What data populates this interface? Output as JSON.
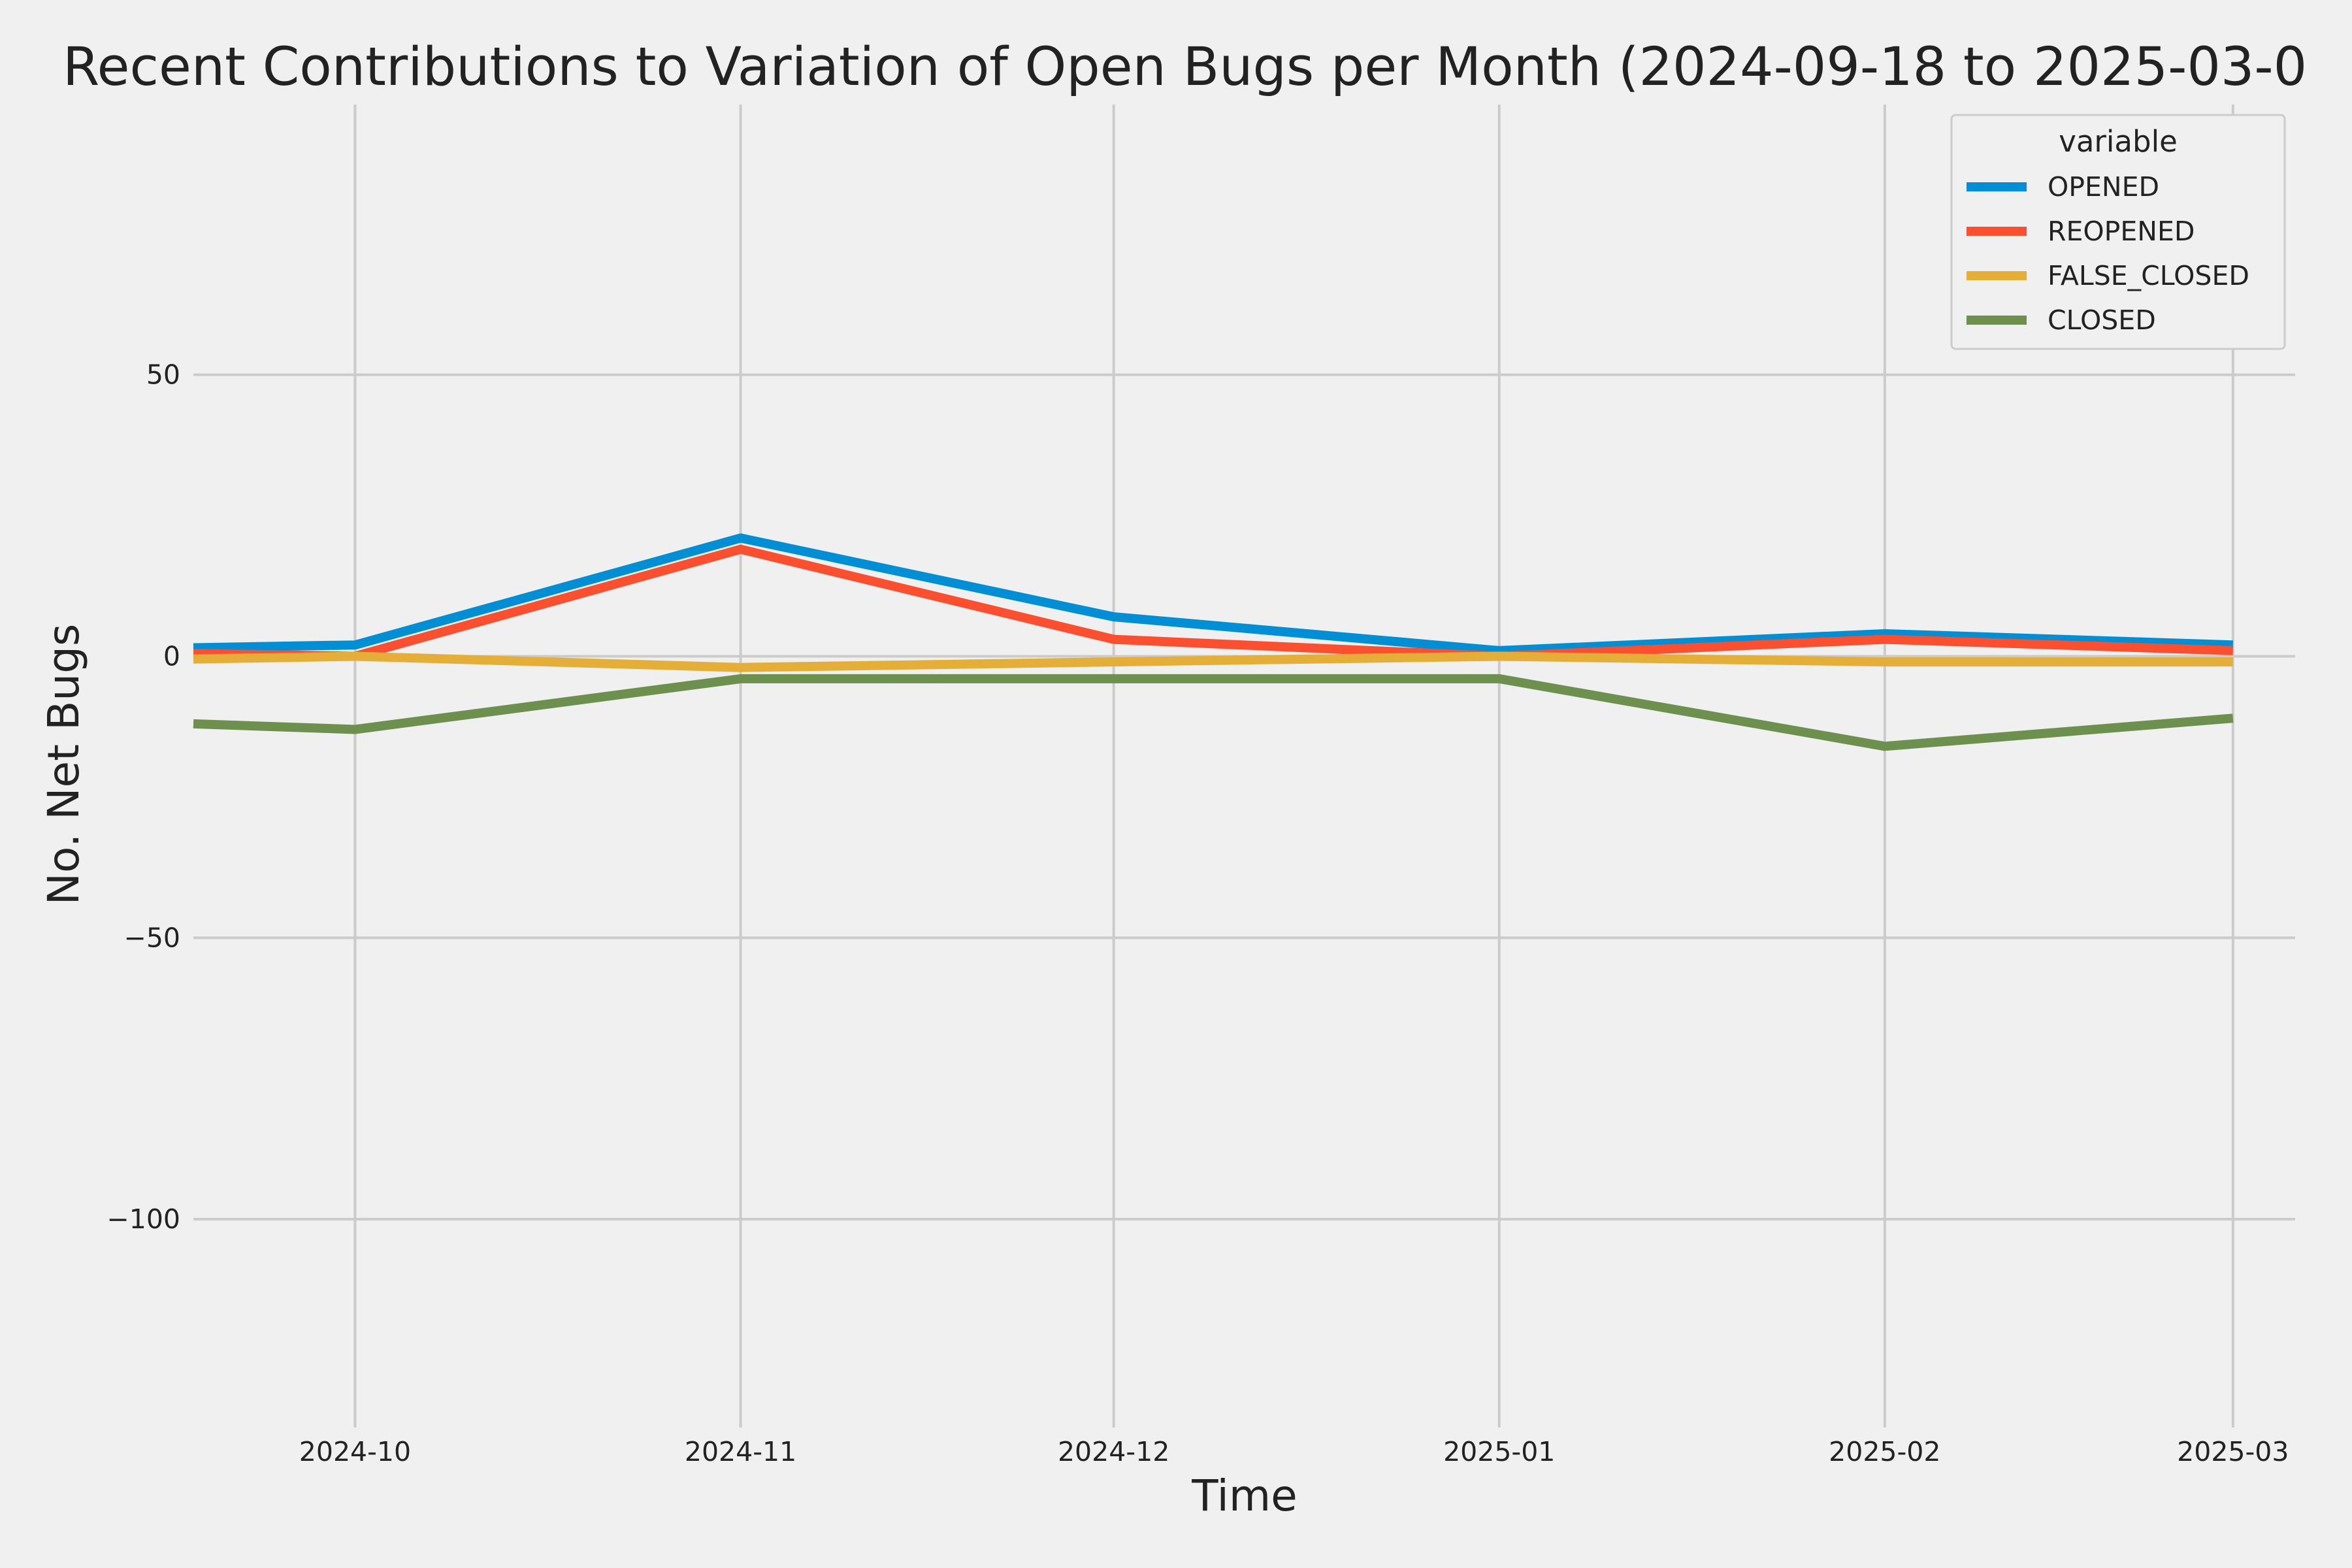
{
  "chart_data": {
    "type": "line",
    "title": "Recent Contributions to Variation of Open Bugs per Month (2024-09-18 to 2025-03-0",
    "xlabel": "Time",
    "ylabel": "No. Net Bugs",
    "xlim": [
      "2024-09-18",
      "2025-03-06"
    ],
    "ylim": [
      -137,
      98
    ],
    "x_ticks": [
      "2024-10",
      "2024-11",
      "2024-12",
      "2025-01",
      "2025-02",
      "2025-03"
    ],
    "y_ticks": [
      {
        "value": 50,
        "label": "50"
      },
      {
        "value": 0,
        "label": "0"
      },
      {
        "value": -50,
        "label": "−50"
      },
      {
        "value": -100,
        "label": "−100"
      }
    ],
    "grid": true,
    "legend": {
      "title": "variable",
      "position": "top-right"
    },
    "x": [
      "2024-09-18",
      "2024-10-01",
      "2024-11-01",
      "2024-12-01",
      "2025-01-01",
      "2025-02-01",
      "2025-03-01"
    ],
    "series": [
      {
        "name": "OPENED",
        "color": "#008fd5",
        "values": [
          1.5,
          2,
          21,
          7,
          1,
          4,
          2
        ]
      },
      {
        "name": "REOPENED",
        "color": "#fc4f30",
        "values": [
          0.5,
          0,
          19,
          3,
          0,
          3,
          1
        ]
      },
      {
        "name": "FALSE_CLOSED",
        "color": "#e5ae38",
        "values": [
          -0.5,
          0,
          -2,
          -1,
          0,
          -1,
          -1
        ]
      },
      {
        "name": "CLOSED",
        "color": "#6d904f",
        "values": [
          -12,
          -13,
          -4,
          -4,
          -4,
          -16,
          -11
        ]
      }
    ]
  }
}
